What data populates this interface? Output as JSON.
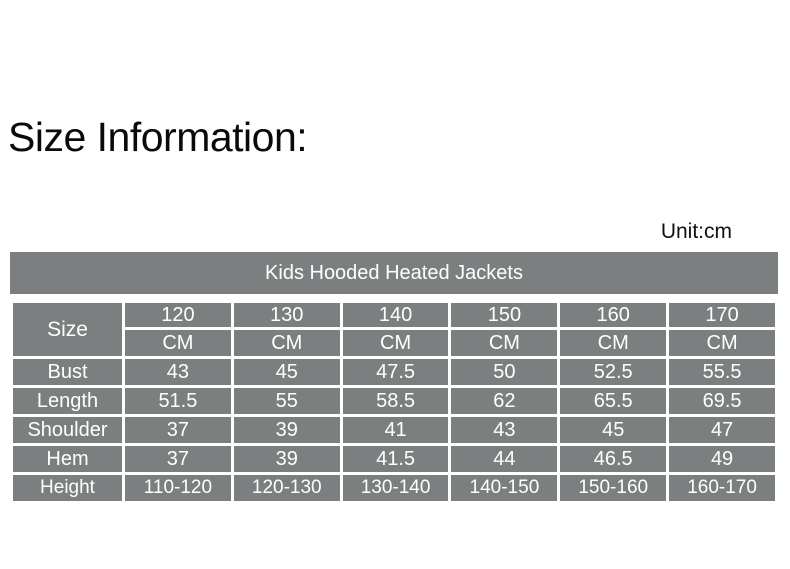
{
  "page": {
    "title": "Size Information:",
    "unit_label": "Unit:cm"
  },
  "table": {
    "title": "Kids Hooded Heated Jackets",
    "corner_label": "Size",
    "sizes": [
      "120",
      "130",
      "140",
      "150",
      "160",
      "170"
    ],
    "cm_row": [
      "CM",
      "CM",
      "CM",
      "CM",
      "CM",
      "CM"
    ],
    "rows": [
      {
        "label": "Bust",
        "values": [
          "43",
          "45",
          "47.5",
          "50",
          "52.5",
          "55.5"
        ]
      },
      {
        "label": "Length",
        "values": [
          "51.5",
          "55",
          "58.5",
          "62",
          "65.5",
          "69.5"
        ]
      },
      {
        "label": "Shoulder",
        "values": [
          "37",
          "39",
          "41",
          "43",
          "45",
          "47"
        ]
      },
      {
        "label": "Hem",
        "values": [
          "37",
          "39",
          "41.5",
          "44",
          "46.5",
          "49"
        ]
      },
      {
        "label": "Height",
        "values": [
          "110-120",
          "120-130",
          "130-140",
          "140-150",
          "150-160",
          "160-170"
        ]
      }
    ]
  },
  "colors": {
    "cell_background": "#7c7f80",
    "cell_text": "#ffffff",
    "grid_lines": "#ffffff",
    "title_text": "#0a0a0a"
  },
  "chart_data": {
    "type": "table",
    "title": "Kids Hooded Heated Jackets",
    "unit": "cm",
    "columns": [
      "Size",
      "120 CM",
      "130 CM",
      "140 CM",
      "150 CM",
      "160 CM",
      "170 CM"
    ],
    "rows": [
      [
        "Bust",
        43,
        45,
        47.5,
        50,
        52.5,
        55.5
      ],
      [
        "Length",
        51.5,
        55,
        58.5,
        62,
        65.5,
        69.5
      ],
      [
        "Shoulder",
        37,
        39,
        41,
        43,
        45,
        47
      ],
      [
        "Hem",
        37,
        39,
        41.5,
        44,
        46.5,
        49
      ],
      [
        "Height",
        "110-120",
        "120-130",
        "130-140",
        "140-150",
        "150-160",
        "160-170"
      ]
    ]
  }
}
